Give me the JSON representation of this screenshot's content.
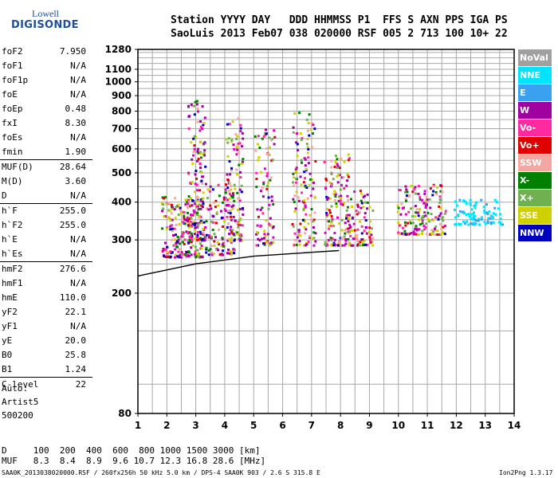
{
  "logo": {
    "top": "Lowell",
    "bottom": "DIGISONDE"
  },
  "header": {
    "line1": "Station YYYY DAY   DDD HHMMSS P1  FFS S AXN PPS IGA PS",
    "line2": "SaoLuis 2013 Feb07 038 020000 RSF 005 2 713 100 10+ 22"
  },
  "params": [
    {
      "label": "foF2",
      "value": "7.950"
    },
    {
      "label": "foF1",
      "value": "N/A"
    },
    {
      "label": "foF1p",
      "value": "N/A"
    },
    {
      "label": "foE",
      "value": "N/A"
    },
    {
      "label": "foEp",
      "value": "0.48"
    },
    {
      "label": "fxI",
      "value": "8.30"
    },
    {
      "label": "foEs",
      "value": "N/A"
    },
    {
      "label": "fmin",
      "value": "1.90"
    },
    {
      "label": "MUF(D)",
      "value": "28.64"
    },
    {
      "label": "M(D)",
      "value": "3.60"
    },
    {
      "label": "D",
      "value": "N/A"
    },
    {
      "label": "h`F",
      "value": "255.0"
    },
    {
      "label": "h`F2",
      "value": "255.0"
    },
    {
      "label": "h`E",
      "value": "N/A"
    },
    {
      "label": "h`Es",
      "value": "N/A"
    },
    {
      "label": "hmF2",
      "value": "276.6"
    },
    {
      "label": "hmF1",
      "value": "N/A"
    },
    {
      "label": "hmE",
      "value": "110.0"
    },
    {
      "label": "yF2",
      "value": "22.1"
    },
    {
      "label": "yF1",
      "value": "N/A"
    },
    {
      "label": "yE",
      "value": "20.0"
    },
    {
      "label": "B0",
      "value": "25.8"
    },
    {
      "label": "B1",
      "value": "1.24"
    },
    {
      "label": "C-level",
      "value": "22"
    }
  ],
  "auto": {
    "line1": "Auto:",
    "line2": "Artist5",
    "line3": "500200"
  },
  "legend": [
    {
      "label": "NoVal",
      "color": "#a0a0a0"
    },
    {
      "label": "NNE",
      "color": "#00e5ff"
    },
    {
      "label": "E",
      "color": "#3aa0f0"
    },
    {
      "label": "W",
      "color": "#a000a0"
    },
    {
      "label": "Vo-",
      "color": "#ff2aa0"
    },
    {
      "label": "Vo+",
      "color": "#e00000"
    },
    {
      "label": "SSW",
      "color": "#f4a6a0"
    },
    {
      "label": "X-",
      "color": "#008000"
    },
    {
      "label": "X+",
      "color": "#70b050"
    },
    {
      "label": "SSE",
      "color": "#d0d000"
    },
    {
      "label": "NNW",
      "color": "#0000c0"
    }
  ],
  "footer": {
    "d_row": "D     100  200  400  600  800 1000 1500 3000 [km]",
    "muf_row": "MUF   8.3  8.4  8.9  9.6 10.7 12.3 16.8 28.6 [MHz]",
    "file_line": "SAA0K_2013038020000.RSF / 260fx256h 50 kHz 5.0 km / DPS-4 SAA0K 903 / 2.6 S 315.8 E",
    "version": "Ion2Png 1.3.17"
  },
  "chart_data": {
    "type": "scatter",
    "x_ticks": [
      "1",
      "2",
      "3",
      "4",
      "5",
      "6",
      "7",
      "8",
      "9",
      "10",
      "11",
      "12",
      "13",
      "14"
    ],
    "y_ticks": [
      "80",
      "200",
      "300",
      "400",
      "500",
      "600",
      "700",
      "800",
      "900",
      "1000",
      "1100",
      "1280"
    ],
    "xlim": [
      1,
      14
    ],
    "ylim": [
      80,
      1280
    ],
    "y_scale": "log",
    "grid": true,
    "legend_position": "right",
    "profile": {
      "name": "profile",
      "points": [
        [
          1.0,
          228
        ],
        [
          3.0,
          250
        ],
        [
          5.0,
          265
        ],
        [
          7.0,
          273
        ],
        [
          7.95,
          276.6
        ]
      ]
    },
    "trace_clusters": [
      {
        "freq": [
          1.8,
          3.2
        ],
        "height": [
          265,
          420
        ],
        "n": 240
      },
      {
        "freq": [
          2.7,
          3.3
        ],
        "height": [
          300,
          880
        ],
        "n": 140
      },
      {
        "freq": [
          3.3,
          4.3
        ],
        "height": [
          270,
          470
        ],
        "n": 120
      },
      {
        "freq": [
          4.0,
          4.6
        ],
        "height": [
          300,
          780
        ],
        "n": 110
      },
      {
        "freq": [
          5.0,
          5.7
        ],
        "height": [
          290,
          720
        ],
        "n": 90
      },
      {
        "freq": [
          6.3,
          7.1
        ],
        "height": [
          290,
          800
        ],
        "n": 130
      },
      {
        "freq": [
          7.4,
          8.3
        ],
        "height": [
          290,
          580
        ],
        "n": 140
      },
      {
        "freq": [
          8.2,
          9.1
        ],
        "height": [
          290,
          450
        ],
        "n": 90
      },
      {
        "freq": [
          9.9,
          11.6
        ],
        "height": [
          315,
          460
        ],
        "n": 170
      },
      {
        "freq": [
          11.9,
          13.6
        ],
        "height": [
          340,
          410
        ],
        "n": 90
      }
    ]
  }
}
